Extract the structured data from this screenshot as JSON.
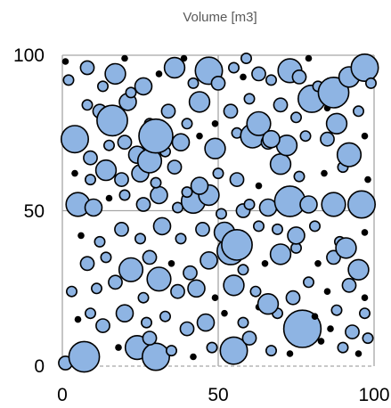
{
  "chart_data": {
    "type": "scatter",
    "subtype": "bubble",
    "title": "Volume [m3]",
    "xlabel": "",
    "ylabel": "",
    "xlim": [
      0,
      100
    ],
    "ylim": [
      0,
      100
    ],
    "x_ticks": [
      "0",
      "50",
      "100"
    ],
    "y_ticks": [
      "0",
      "50",
      "100"
    ],
    "grid": true,
    "legend": "none",
    "colors": {
      "fill": "#8eb4e3",
      "stroke": "#000000",
      "grid": "#a6a6a6"
    },
    "points": [
      [
        1,
        1,
        4
      ],
      [
        7,
        3,
        9
      ],
      [
        18,
        6,
        2
      ],
      [
        24,
        6,
        7
      ],
      [
        30,
        3,
        8
      ],
      [
        28,
        9,
        4
      ],
      [
        35,
        5,
        3
      ],
      [
        42,
        3,
        2
      ],
      [
        48,
        6,
        3
      ],
      [
        55,
        5,
        8
      ],
      [
        60,
        9,
        4
      ],
      [
        67,
        5,
        3
      ],
      [
        73,
        4,
        2
      ],
      [
        77,
        12,
        11
      ],
      [
        83,
        8,
        2
      ],
      [
        90,
        6,
        3
      ],
      [
        95,
        4,
        2
      ],
      [
        98,
        9,
        3
      ],
      [
        86,
        12,
        2
      ],
      [
        93,
        11,
        4
      ],
      [
        5,
        15,
        2
      ],
      [
        9,
        17,
        3
      ],
      [
        13,
        13,
        4
      ],
      [
        20,
        17,
        5
      ],
      [
        27,
        14,
        3
      ],
      [
        33,
        16,
        3
      ],
      [
        40,
        12,
        4
      ],
      [
        46,
        14,
        5
      ],
      [
        52,
        17,
        2
      ],
      [
        58,
        14,
        3
      ],
      [
        63,
        19,
        2
      ],
      [
        69,
        17,
        3
      ],
      [
        74,
        22,
        4
      ],
      [
        81,
        16,
        2
      ],
      [
        88,
        18,
        3
      ],
      [
        97,
        17,
        3
      ],
      [
        3,
        24,
        3
      ],
      [
        11,
        25,
        3
      ],
      [
        17,
        27,
        4
      ],
      [
        26,
        22,
        3
      ],
      [
        31,
        28,
        7
      ],
      [
        37,
        24,
        4
      ],
      [
        43,
        25,
        5
      ],
      [
        49,
        22,
        2
      ],
      [
        55,
        26,
        6
      ],
      [
        62,
        24,
        3
      ],
      [
        66,
        20,
        6
      ],
      [
        79,
        27,
        3
      ],
      [
        85,
        24,
        2
      ],
      [
        92,
        26,
        4
      ],
      [
        97,
        22,
        2
      ],
      [
        8,
        33,
        4
      ],
      [
        14,
        35,
        3
      ],
      [
        22,
        31,
        7
      ],
      [
        28,
        35,
        4
      ],
      [
        35,
        33,
        2
      ],
      [
        41,
        30,
        4
      ],
      [
        47,
        34,
        5
      ],
      [
        54,
        37,
        8
      ],
      [
        58,
        31,
        3
      ],
      [
        65,
        33,
        2
      ],
      [
        70,
        36,
        6
      ],
      [
        75,
        38,
        3
      ],
      [
        82,
        33,
        2
      ],
      [
        87,
        35,
        4
      ],
      [
        95,
        31,
        6
      ],
      [
        6,
        42,
        2
      ],
      [
        12,
        40,
        3
      ],
      [
        19,
        44,
        4
      ],
      [
        25,
        41,
        3
      ],
      [
        32,
        45,
        5
      ],
      [
        38,
        41,
        3
      ],
      [
        45,
        44,
        4
      ],
      [
        52,
        43,
        6
      ],
      [
        56,
        39,
        9
      ],
      [
        63,
        45,
        3
      ],
      [
        69,
        44,
        3
      ],
      [
        75,
        42,
        5
      ],
      [
        81,
        45,
        3
      ],
      [
        89,
        40,
        3
      ],
      [
        91,
        38,
        6
      ],
      [
        97,
        43,
        2
      ],
      [
        5,
        52,
        7
      ],
      [
        10,
        51,
        5
      ],
      [
        15,
        54,
        2
      ],
      [
        20,
        55,
        3
      ],
      [
        26,
        52,
        4
      ],
      [
        31,
        55,
        5
      ],
      [
        37,
        51,
        3
      ],
      [
        42,
        53,
        7
      ],
      [
        47,
        55,
        6
      ],
      [
        51,
        49,
        3
      ],
      [
        58,
        50,
        4
      ],
      [
        60,
        52,
        3
      ],
      [
        66,
        51,
        5
      ],
      [
        73,
        53,
        9
      ],
      [
        79,
        52,
        5
      ],
      [
        87,
        52,
        7
      ],
      [
        96,
        52,
        8
      ],
      [
        4,
        62,
        2
      ],
      [
        9,
        60,
        3
      ],
      [
        14,
        63,
        6
      ],
      [
        19,
        60,
        4
      ],
      [
        25,
        62,
        5
      ],
      [
        30,
        59,
        3
      ],
      [
        36,
        64,
        4
      ],
      [
        40,
        56,
        3
      ],
      [
        44,
        58,
        5
      ],
      [
        50,
        62,
        3
      ],
      [
        56,
        60,
        4
      ],
      [
        63,
        58,
        2
      ],
      [
        70,
        65,
        6
      ],
      [
        76,
        61,
        3
      ],
      [
        84,
        62,
        2
      ],
      [
        90,
        64,
        3
      ],
      [
        98,
        60,
        2
      ],
      [
        4,
        73,
        8
      ],
      [
        9,
        67,
        4
      ],
      [
        15,
        71,
        3
      ],
      [
        20,
        72,
        4
      ],
      [
        24,
        68,
        5
      ],
      [
        28,
        66,
        7
      ],
      [
        33,
        69,
        3
      ],
      [
        38,
        72,
        5
      ],
      [
        44,
        74,
        2
      ],
      [
        49,
        70,
        6
      ],
      [
        56,
        75,
        3
      ],
      [
        61,
        74,
        7
      ],
      [
        66,
        72,
        4
      ],
      [
        72,
        71,
        6
      ],
      [
        78,
        74,
        3
      ],
      [
        85,
        73,
        4
      ],
      [
        92,
        68,
        7
      ],
      [
        97,
        74,
        2
      ],
      [
        8,
        84,
        3
      ],
      [
        12,
        82,
        4
      ],
      [
        16,
        79,
        9
      ],
      [
        21,
        85,
        5
      ],
      [
        28,
        78,
        3
      ],
      [
        30,
        74,
        10
      ],
      [
        34,
        82,
        4
      ],
      [
        40,
        78,
        3
      ],
      [
        44,
        85,
        6
      ],
      [
        49,
        78,
        2
      ],
      [
        54,
        82,
        4
      ],
      [
        60,
        86,
        3
      ],
      [
        63,
        78,
        7
      ],
      [
        67,
        73,
        5
      ],
      [
        70,
        84,
        4
      ],
      [
        75,
        80,
        3
      ],
      [
        80,
        86,
        8
      ],
      [
        85,
        83,
        2
      ],
      [
        88,
        78,
        6
      ],
      [
        95,
        82,
        3
      ],
      [
        2,
        92,
        3
      ],
      [
        8,
        96,
        4
      ],
      [
        13,
        90,
        3
      ],
      [
        17,
        94,
        6
      ],
      [
        22,
        88,
        3
      ],
      [
        26,
        90,
        5
      ],
      [
        31,
        94,
        2
      ],
      [
        36,
        96,
        6
      ],
      [
        42,
        91,
        3
      ],
      [
        47,
        95,
        8
      ],
      [
        50,
        91,
        4
      ],
      [
        55,
        96,
        3
      ],
      [
        58,
        93,
        2
      ],
      [
        63,
        94,
        4
      ],
      [
        67,
        92,
        3
      ],
      [
        73,
        95,
        7
      ],
      [
        76,
        93,
        4
      ],
      [
        82,
        90,
        3
      ],
      [
        87,
        88,
        9
      ],
      [
        92,
        93,
        6
      ],
      [
        97,
        96,
        8
      ],
      [
        99,
        91,
        3
      ],
      [
        1,
        98,
        2
      ],
      [
        20,
        99,
        2
      ],
      [
        39,
        99,
        2
      ],
      [
        59,
        99,
        3
      ],
      [
        79,
        99,
        2
      ]
    ]
  }
}
